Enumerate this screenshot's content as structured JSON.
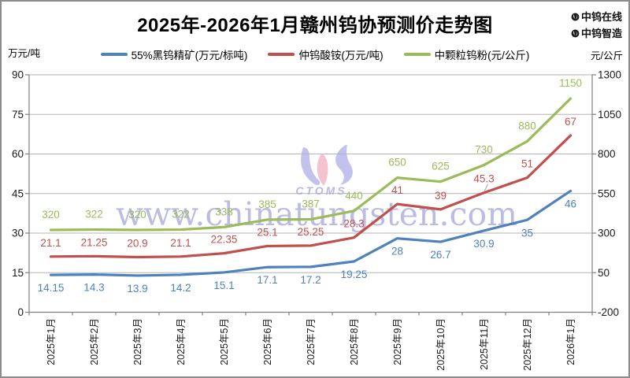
{
  "title": "2025年-2026年1月赣州钨协预测价走势图",
  "source_badges": [
    {
      "label": "中钨在线"
    },
    {
      "label": "中钨智造"
    }
  ],
  "watermark": {
    "text": "www.chinatungsten.com",
    "logo_text": "CTOMS"
  },
  "chart_data": {
    "type": "line",
    "title": "2025年-2026年1月赣州钨协预测价走势图",
    "categories": [
      "2025年1月",
      "2025年2月",
      "2025年3月",
      "2025年4月",
      "2025年5月",
      "2025年6月",
      "2025年7月",
      "2025年8月",
      "2025年9月",
      "2025年10月",
      "2025年11月",
      "2025年12月",
      "2026年1月"
    ],
    "series": [
      {
        "name": "55%黑钨精矿(万元/标吨)",
        "color": "#4F81BD",
        "axis": "left",
        "label_position": "below",
        "values": [
          14.15,
          14.3,
          13.9,
          14.2,
          15.1,
          17.1,
          17.2,
          19.25,
          28,
          26.7,
          30.9,
          35,
          46
        ]
      },
      {
        "name": "仲钨酸铵(万元/吨)",
        "color": "#C0504D",
        "axis": "left",
        "label_position": "above",
        "values": [
          21.1,
          21.25,
          20.9,
          21.1,
          22.35,
          25.1,
          25.25,
          28.3,
          41,
          39,
          45.3,
          51,
          67
        ]
      },
      {
        "name": "中颗粒钨粉(元/公斤)",
        "color": "#9BBB59",
        "axis": "right",
        "label_position": "above",
        "values": [
          320,
          322,
          320,
          322,
          338,
          385,
          387,
          440,
          650,
          625,
          730,
          880,
          1150
        ]
      }
    ],
    "left_axis": {
      "unit": "万元/吨",
      "min": 0,
      "max": 90,
      "step": 15,
      "ticks": [
        0,
        15,
        30,
        45,
        60,
        75,
        90
      ]
    },
    "right_axis": {
      "unit": "元/公斤",
      "min": -200,
      "max": 1300,
      "step": 250,
      "ticks": [
        -200,
        50,
        300,
        550,
        800,
        1050,
        1300
      ]
    },
    "grid": "horizontal",
    "legend_position": "top",
    "annotations": [
      {
        "type": "leader-line",
        "series_index": 1,
        "point_index": 10
      }
    ]
  }
}
